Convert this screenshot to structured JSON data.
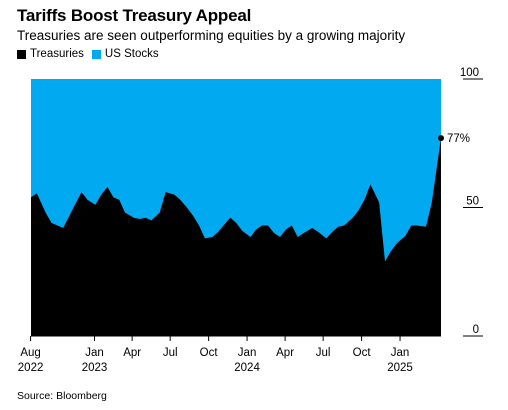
{
  "header": {
    "title": "Tariffs Boost Treasury Appeal",
    "subtitle": "Treasuries are seen outperforming equities by a growing majority"
  },
  "legend": [
    {
      "label": "Treasuries",
      "color": "#000000"
    },
    {
      "label": "US Stocks",
      "color": "#00a9f0"
    }
  ],
  "source": "Source: Bloomberg",
  "chart_data": {
    "type": "area",
    "stacked_to": 100,
    "series": [
      {
        "name": "Treasuries",
        "color": "#000000"
      },
      {
        "name": "US Stocks",
        "color": "#00a9f0"
      }
    ],
    "x": [
      "2022-08-02",
      "2022-08-16",
      "2022-09-06",
      "2022-09-20",
      "2022-10-18",
      "2022-11-01",
      "2022-11-15",
      "2022-12-01",
      "2022-12-15",
      "2023-01-03",
      "2023-01-17",
      "2023-02-01",
      "2023-02-15",
      "2023-03-01",
      "2023-03-15",
      "2023-04-05",
      "2023-04-19",
      "2023-05-03",
      "2023-05-17",
      "2023-06-06",
      "2023-06-20",
      "2023-07-11",
      "2023-07-25",
      "2023-08-10",
      "2023-08-24",
      "2023-09-08",
      "2023-09-22",
      "2023-10-10",
      "2023-10-24",
      "2023-11-08",
      "2023-11-22",
      "2023-12-06",
      "2023-12-20",
      "2024-01-09",
      "2024-01-23",
      "2024-02-06",
      "2024-02-20",
      "2024-03-06",
      "2024-03-20",
      "2024-04-03",
      "2024-04-17",
      "2024-05-01",
      "2024-05-15",
      "2024-06-05",
      "2024-06-19",
      "2024-07-09",
      "2024-07-23",
      "2024-08-06",
      "2024-08-20",
      "2024-09-10",
      "2024-09-24",
      "2024-10-08",
      "2024-10-22",
      "2024-11-12",
      "2024-11-26",
      "2024-12-10",
      "2024-12-24",
      "2025-01-14",
      "2025-01-28",
      "2025-02-11",
      "2025-03-04",
      "2025-03-18",
      "2025-04-09"
    ],
    "treasuries": [
      54,
      55.5,
      48,
      44,
      42,
      46.5,
      51,
      56,
      53,
      51,
      55,
      58,
      54,
      53,
      48,
      46,
      45.5,
      46,
      45,
      48,
      56,
      55,
      53,
      50,
      47,
      43,
      38,
      38.5,
      40.5,
      43.5,
      46,
      44,
      41,
      38.5,
      41.5,
      43,
      43,
      40,
      38.5,
      41.5,
      43,
      38.5,
      40,
      42,
      40.5,
      38,
      40.5,
      42.5,
      43,
      46,
      49,
      53,
      59,
      52,
      29,
      33,
      36,
      39,
      43,
      43,
      42.5,
      52,
      77
    ],
    "final_label": "77%",
    "y_ticks": [
      0,
      50,
      100
    ],
    "ylim": [
      0,
      100
    ],
    "x_tick_labels": [
      {
        "label": "Aug",
        "year": "2022",
        "date": "2022-08-01"
      },
      {
        "label": "Jan",
        "year": "2023",
        "date": "2023-01-01"
      },
      {
        "label": "Apr",
        "year": "",
        "date": "2023-04-01"
      },
      {
        "label": "Jul",
        "year": "",
        "date": "2023-07-01"
      },
      {
        "label": "Oct",
        "year": "",
        "date": "2023-10-01"
      },
      {
        "label": "Jan",
        "year": "2024",
        "date": "2024-01-01"
      },
      {
        "label": "Apr",
        "year": "",
        "date": "2024-04-01"
      },
      {
        "label": "Jul",
        "year": "",
        "date": "2024-07-01"
      },
      {
        "label": "Oct",
        "year": "",
        "date": "2024-10-01"
      },
      {
        "label": "Jan",
        "year": "2025",
        "date": "2025-01-01"
      }
    ]
  }
}
